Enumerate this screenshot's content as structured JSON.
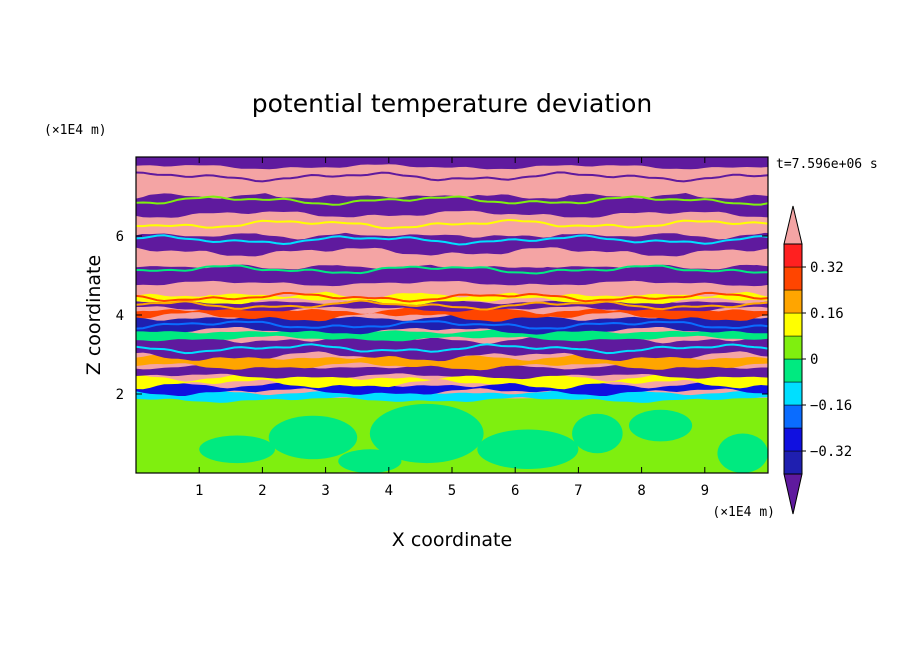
{
  "chart_data": {
    "type": "heatmap",
    "title": "potential temperature deviation",
    "xlabel": "X coordinate",
    "ylabel": "Z coordinate",
    "x_unit": "(×1E4 m)",
    "y_unit": "(×1E4 m)",
    "time_label": "t=7.596e+06 s",
    "xlim": [
      0,
      10
    ],
    "ylim": [
      0,
      8
    ],
    "x_ticks": [
      1,
      2,
      3,
      4,
      5,
      6,
      7,
      8,
      9
    ],
    "y_ticks": [
      2,
      4,
      6
    ],
    "x_tick_labels": [
      "1",
      "2",
      "3",
      "4",
      "5",
      "6",
      "7",
      "8",
      "9"
    ],
    "y_tick_labels": [
      "2",
      "4",
      "6"
    ],
    "colorbar": {
      "levels": [
        -0.4,
        -0.32,
        -0.24,
        -0.16,
        -0.08,
        0,
        0.08,
        0.16,
        0.24,
        0.32,
        0.4
      ],
      "tick_values": [
        0.32,
        0.16,
        0,
        -0.16,
        -0.32
      ],
      "tick_labels": [
        "0.32",
        "0.16",
        "0",
        "−0.16",
        "−0.32"
      ],
      "colors": [
        "#5f1a9e",
        "#1f1fb0",
        "#1010e0",
        "#0a6cff",
        "#00dfff",
        "#00ea80",
        "#7fef0f",
        "#ffff00",
        "#ffa500",
        "#ff4500",
        "#ff2020",
        "#f4a4a4"
      ],
      "extend": "both"
    },
    "bands": [
      {
        "z": [
          7.8,
          8.0
        ],
        "level": "neg_extreme"
      },
      {
        "z": [
          7.1,
          7.8
        ],
        "level": "pos_extreme"
      },
      {
        "z": [
          6.6,
          7.1
        ],
        "level": "neg_extreme"
      },
      {
        "z": [
          6.1,
          6.6
        ],
        "level": "pos_extreme"
      },
      {
        "z": [
          5.7,
          6.1
        ],
        "level": "neg_extreme"
      },
      {
        "z": [
          5.2,
          5.7
        ],
        "level": "pos_extreme"
      },
      {
        "z": [
          4.8,
          5.2
        ],
        "level": "neg_extreme"
      },
      {
        "z": [
          4.3,
          4.8
        ],
        "level": "pos_extreme"
      },
      {
        "z": [
          3.9,
          4.3
        ],
        "level": "neg_extreme"
      },
      {
        "z": [
          3.5,
          3.9
        ],
        "level": "pos_extreme"
      },
      {
        "z": [
          3.0,
          3.5
        ],
        "level": "neg_extreme"
      },
      {
        "z": [
          2.6,
          3.0
        ],
        "level": "pos_extreme"
      },
      {
        "z": [
          2.1,
          2.6
        ],
        "level": "neg_strong"
      },
      {
        "z": [
          1.9,
          2.1
        ],
        "level": "near_zero"
      },
      {
        "z": [
          0.0,
          1.9
        ],
        "level": "near_zero_mixed"
      }
    ]
  }
}
